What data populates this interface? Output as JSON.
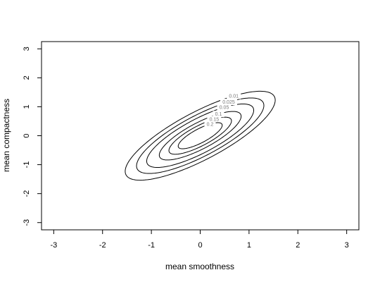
{
  "chart_data": {
    "type": "contour",
    "title": "",
    "xlabel": "mean smoothness",
    "ylabel": "mean compactness",
    "xlim": [
      -3.25,
      3.25
    ],
    "ylim": [
      -3.25,
      3.25
    ],
    "x_ticks": [
      -3,
      -2,
      -1,
      0,
      1,
      2,
      3
    ],
    "y_ticks": [
      -3,
      -2,
      -1,
      0,
      1,
      2,
      3
    ],
    "x_tick_labels": [
      "-3",
      "-2",
      "-1",
      "0",
      "1",
      "2",
      "3"
    ],
    "y_tick_labels": [
      "-3",
      "-2",
      "-1",
      "0",
      "1",
      "2",
      "3"
    ],
    "distribution": {
      "mean": [
        0,
        0
      ],
      "sd": [
        1,
        1
      ],
      "correlation": 0.8
    },
    "levels": [
      0.01,
      0.025,
      0.05,
      0.1,
      0.15,
      0.2
    ],
    "level_labels": [
      "0.01",
      "0.025",
      "0.05",
      "0.1",
      "0.15",
      "0.2"
    ],
    "grid": false,
    "legend": "none",
    "line_color": "#000000",
    "label_color": "#777777"
  }
}
